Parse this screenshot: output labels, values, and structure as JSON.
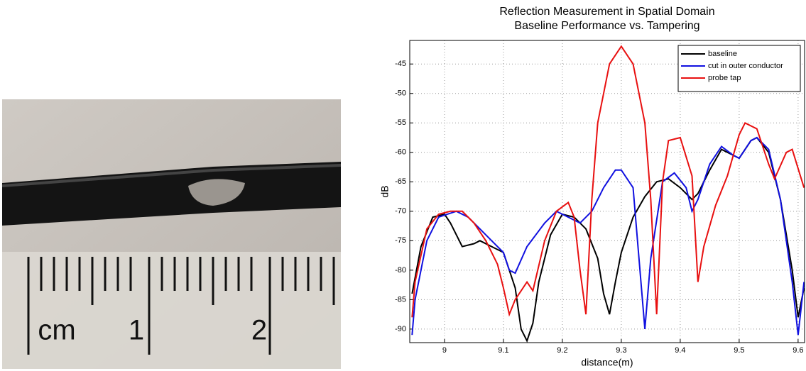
{
  "photo_labels": [
    "cm",
    "1",
    "2"
  ],
  "chart_data": {
    "type": "line",
    "title": "Reflection Measurement in Spatial Domain",
    "subtitle": "Baseline Performance vs. Tampering",
    "x_label": "distance(m)",
    "y_label": "dB",
    "xlim": [
      8.941,
      9.611
    ],
    "xticks": [
      9,
      9.1,
      9.2,
      9.3,
      9.4,
      9.5,
      9.6
    ],
    "ylim": [
      -92.3,
      -41
    ],
    "yticks": [
      -90,
      -85,
      -80,
      -75,
      -70,
      -65,
      -60,
      -55,
      -50,
      -45
    ],
    "grid": true,
    "legend": "top-right",
    "series": [
      {
        "name": "baseline",
        "color": "#000000",
        "x": [
          8.945,
          8.96,
          8.98,
          9.0,
          9.01,
          9.03,
          9.05,
          9.06,
          9.08,
          9.1,
          9.12,
          9.13,
          9.14,
          9.15,
          9.16,
          9.18,
          9.2,
          9.22,
          9.24,
          9.26,
          9.27,
          9.28,
          9.29,
          9.3,
          9.32,
          9.34,
          9.36,
          9.38,
          9.4,
          9.42,
          9.43,
          9.45,
          9.47,
          9.49,
          9.5,
          9.52,
          9.53,
          9.55,
          9.57,
          9.59,
          9.6,
          9.61
        ],
        "values": [
          -84,
          -76,
          -71,
          -70.5,
          -72,
          -76,
          -75.5,
          -75,
          -76,
          -77,
          -83,
          -90,
          -92,
          -89,
          -82,
          -74,
          -70.5,
          -71,
          -73,
          -78,
          -84,
          -87.5,
          -82,
          -77,
          -71,
          -67.5,
          -65,
          -64.5,
          -66,
          -68,
          -67,
          -63,
          -59.5,
          -60.5,
          -61,
          -58,
          -57.5,
          -60,
          -68,
          -80,
          -88,
          -83
        ]
      },
      {
        "name": "cut in outer conductor",
        "color": "#1010e0",
        "x": [
          8.945,
          8.95,
          8.97,
          8.99,
          9.02,
          9.04,
          9.06,
          9.08,
          9.1,
          9.11,
          9.12,
          9.14,
          9.17,
          9.19,
          9.21,
          9.23,
          9.25,
          9.27,
          9.29,
          9.3,
          9.32,
          9.33,
          9.34,
          9.35,
          9.37,
          9.39,
          9.41,
          9.42,
          9.43,
          9.45,
          9.47,
          9.49,
          9.5,
          9.52,
          9.53,
          9.55,
          9.57,
          9.59,
          9.6,
          9.61
        ],
        "values": [
          -91,
          -85,
          -75,
          -71,
          -70,
          -71,
          -73,
          -75,
          -77,
          -80,
          -80.5,
          -76,
          -72,
          -70,
          -71,
          -72,
          -70,
          -66,
          -63,
          -63,
          -66,
          -78,
          -90,
          -78,
          -65,
          -63.5,
          -66,
          -70,
          -68,
          -62,
          -59,
          -60.5,
          -61,
          -58,
          -57.5,
          -59.5,
          -68,
          -82,
          -91,
          -82
        ]
      },
      {
        "name": "probe tap",
        "color": "#e81010",
        "x": [
          8.945,
          8.95,
          8.97,
          8.99,
          9.01,
          9.03,
          9.05,
          9.07,
          9.09,
          9.1,
          9.11,
          9.12,
          9.14,
          9.15,
          9.17,
          9.19,
          9.21,
          9.22,
          9.23,
          9.24,
          9.25,
          9.26,
          9.28,
          9.3,
          9.32,
          9.34,
          9.35,
          9.36,
          9.37,
          9.38,
          9.4,
          9.42,
          9.43,
          9.44,
          9.46,
          9.48,
          9.5,
          9.51,
          9.53,
          9.55,
          9.56,
          9.58,
          9.59,
          9.61
        ],
        "values": [
          -88,
          -82,
          -73,
          -70.5,
          -70,
          -70,
          -72,
          -75,
          -79,
          -83,
          -87.5,
          -85,
          -82,
          -83.5,
          -75,
          -70,
          -68.5,
          -71,
          -80,
          -87.5,
          -68,
          -55,
          -45,
          -42,
          -45,
          -55,
          -68,
          -87.5,
          -65,
          -58,
          -57.5,
          -64,
          -82,
          -76,
          -69,
          -64,
          -57,
          -55,
          -56,
          -62,
          -64.5,
          -60,
          -59.5,
          -66
        ]
      }
    ]
  }
}
